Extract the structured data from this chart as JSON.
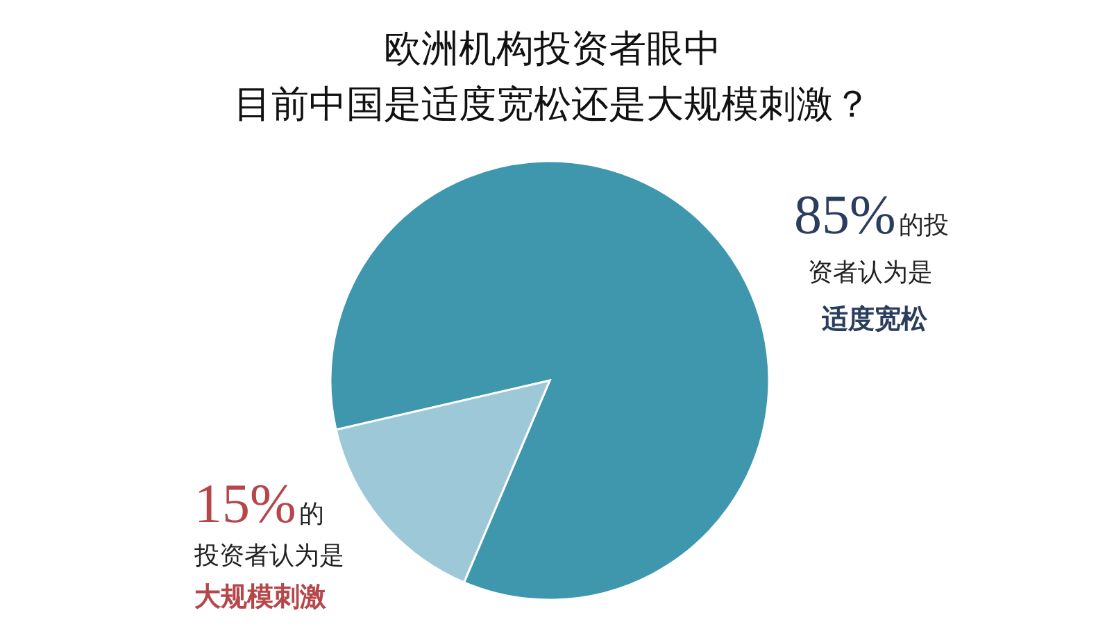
{
  "chart_data": {
    "type": "pie",
    "title": "欧洲机构投资者眼中",
    "subtitle": "目前中国是适度宽松还是大规模刺激？",
    "categories": [
      "适度宽松",
      "大规模刺激"
    ],
    "values": [
      85,
      15
    ],
    "colors": [
      "#3f97ad",
      "#9dc8d8"
    ],
    "value_labels": [
      "85%",
      "15%"
    ],
    "annotations": [
      "的投",
      "资者认为是",
      "的",
      "投资者认为是"
    ],
    "legend": false
  }
}
